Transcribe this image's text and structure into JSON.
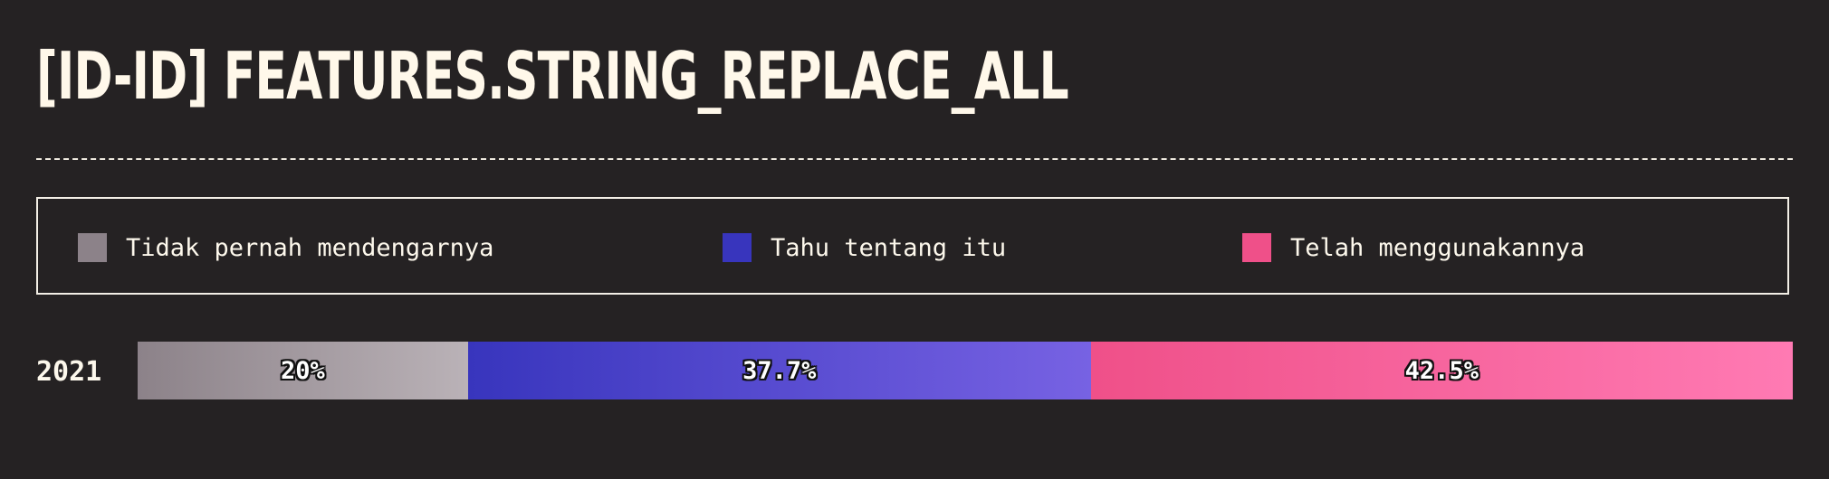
{
  "title": "[ID-ID] FEATURES.STRING_REPLACE_ALL",
  "legend": [
    {
      "label": "Tidak pernah mendengarnya",
      "color": "#8c8289"
    },
    {
      "label": "Tahu tentang itu",
      "color": "#3835bd"
    },
    {
      "label": "Telah menggunakannya",
      "color": "#ef5089"
    }
  ],
  "chart_data": {
    "type": "bar",
    "orientation": "horizontal-stacked-100",
    "categories": [
      "2021"
    ],
    "series": [
      {
        "name": "Tidak pernah mendengarnya",
        "values": [
          20
        ],
        "label": "20%",
        "color_start": "#8c8289",
        "color_end": "#bab2b7"
      },
      {
        "name": "Tahu tentang itu",
        "values": [
          37.7
        ],
        "label": "37.7%",
        "color_start": "#3835bd",
        "color_end": "#7762e3"
      },
      {
        "name": "Telah menggunakannya",
        "values": [
          42.5
        ],
        "label": "42.5%",
        "color_start": "#ef5089",
        "color_end": "#ff7ab3"
      }
    ],
    "xlim": [
      0,
      100
    ]
  }
}
